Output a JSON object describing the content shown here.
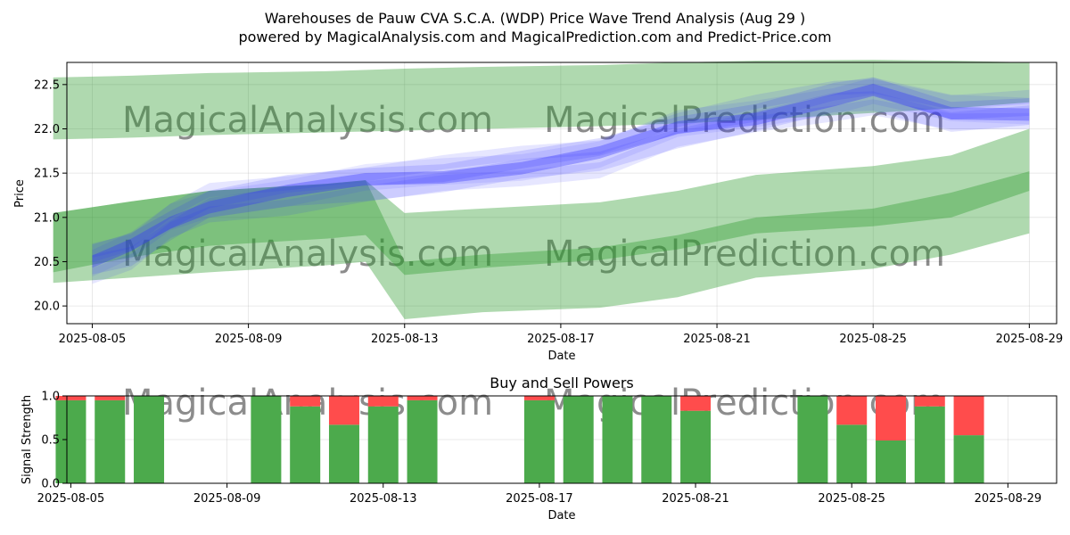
{
  "title_line1": "Warehouses de Pauw CVA S.C.A. (WDP) Price Wave Trend Analysis (Aug 29 )",
  "title_line2": "powered by MagicalAnalysis.com and MagicalPrediction.com and Predict-Price.com",
  "watermarks": [
    "MagicalAnalysis.com",
    "MagicalPrediction.com"
  ],
  "colors": {
    "band_green": "#2e9b2e",
    "wave_blue": "#3333ff",
    "buy_green": "#4caa4c",
    "sell_red": "#ff4c4c"
  },
  "chart_data": [
    {
      "type": "area",
      "title": "",
      "xlabel": "Date",
      "ylabel": "Price",
      "x_tick_labels": [
        "2025-08-05",
        "2025-08-09",
        "2025-08-13",
        "2025-08-17",
        "2025-08-21",
        "2025-08-25",
        "2025-08-29"
      ],
      "y_ticks": [
        20.0,
        20.5,
        21.0,
        21.5,
        22.0,
        22.5
      ],
      "xlim": [
        "2025-08-04",
        "2025-08-30"
      ],
      "ylim": [
        19.8,
        22.75
      ],
      "grid": true,
      "series": [
        {
          "kind": "band",
          "x": [
            "2025-08-04",
            "2025-08-06",
            "2025-08-08",
            "2025-08-11",
            "2025-08-13",
            "2025-08-15",
            "2025-08-18",
            "2025-08-20",
            "2025-08-22",
            "2025-08-25",
            "2025-08-27",
            "2025-08-29"
          ],
          "upper": [
            22.58,
            22.6,
            22.63,
            22.65,
            22.68,
            22.7,
            22.72,
            22.75,
            22.77,
            22.78,
            22.77,
            22.75
          ],
          "lower": [
            21.88,
            21.9,
            21.93,
            21.96,
            21.98,
            22.0,
            22.03,
            22.06,
            22.1,
            22.18,
            22.23,
            22.3
          ]
        },
        {
          "kind": "band",
          "x": [
            "2025-08-04",
            "2025-08-06",
            "2025-08-08",
            "2025-08-11",
            "2025-08-12",
            "2025-08-13",
            "2025-08-15",
            "2025-08-18",
            "2025-08-20",
            "2025-08-22",
            "2025-08-25",
            "2025-08-27",
            "2025-08-29"
          ],
          "upper": [
            21.05,
            21.18,
            21.3,
            21.38,
            21.42,
            21.05,
            21.1,
            21.17,
            21.3,
            21.48,
            21.58,
            21.7,
            22.0
          ],
          "lower": [
            20.26,
            20.32,
            20.38,
            20.46,
            20.5,
            19.85,
            19.93,
            19.98,
            20.1,
            20.32,
            20.42,
            20.58,
            20.82
          ]
        },
        {
          "kind": "band",
          "x": [
            "2025-08-04",
            "2025-08-06",
            "2025-08-08",
            "2025-08-11",
            "2025-08-12",
            "2025-08-13",
            "2025-08-15",
            "2025-08-18",
            "2025-08-20",
            "2025-08-22",
            "2025-08-25",
            "2025-08-27",
            "2025-08-29"
          ],
          "upper": [
            21.05,
            21.18,
            21.3,
            21.38,
            21.42,
            20.5,
            20.58,
            20.66,
            20.8,
            21.0,
            21.1,
            21.28,
            21.52
          ],
          "lower": [
            20.38,
            20.55,
            20.68,
            20.76,
            20.8,
            20.35,
            20.43,
            20.52,
            20.64,
            20.82,
            20.9,
            21.0,
            21.3
          ]
        },
        {
          "kind": "wave",
          "x": [
            "2025-08-05",
            "2025-08-06",
            "2025-08-07",
            "2025-08-08",
            "2025-08-10",
            "2025-08-12",
            "2025-08-14",
            "2025-08-16",
            "2025-08-18",
            "2025-08-20",
            "2025-08-22",
            "2025-08-24",
            "2025-08-25",
            "2025-08-27",
            "2025-08-29"
          ],
          "y": [
            20.5,
            20.65,
            20.95,
            21.15,
            21.28,
            21.4,
            21.48,
            21.58,
            21.7,
            22.0,
            22.15,
            22.33,
            22.4,
            22.18,
            22.2
          ]
        }
      ]
    },
    {
      "type": "bar",
      "title": "Buy and Sell Powers",
      "xlabel": "Date",
      "ylabel": "Signal Strength",
      "x_tick_labels": [
        "2025-08-05",
        "2025-08-09",
        "2025-08-13",
        "2025-08-17",
        "2025-08-21",
        "2025-08-25",
        "2025-08-29"
      ],
      "y_ticks": [
        0.0,
        0.5,
        1.0
      ],
      "xlim": [
        "2025-08-04",
        "2025-08-30"
      ],
      "ylim": [
        0,
        1
      ],
      "categories": [
        "2025-08-05",
        "2025-08-06",
        "2025-08-07",
        "2025-08-10",
        "2025-08-11",
        "2025-08-12",
        "2025-08-13",
        "2025-08-14",
        "2025-08-17",
        "2025-08-18",
        "2025-08-19",
        "2025-08-20",
        "2025-08-21",
        "2025-08-24",
        "2025-08-25",
        "2025-08-26",
        "2025-08-27",
        "2025-08-28"
      ],
      "series": [
        {
          "name": "Buy",
          "values": [
            0.95,
            0.95,
            1.0,
            1.0,
            0.88,
            0.67,
            0.88,
            0.95,
            0.95,
            1.0,
            1.0,
            1.0,
            0.83,
            1.0,
            0.67,
            0.49,
            0.88,
            0.55
          ]
        },
        {
          "name": "Sell",
          "values": [
            0.05,
            0.05,
            0.0,
            0.0,
            0.12,
            0.33,
            0.12,
            0.05,
            0.05,
            0.0,
            0.0,
            0.0,
            0.17,
            0.0,
            0.33,
            0.51,
            0.12,
            0.45
          ]
        }
      ]
    }
  ]
}
